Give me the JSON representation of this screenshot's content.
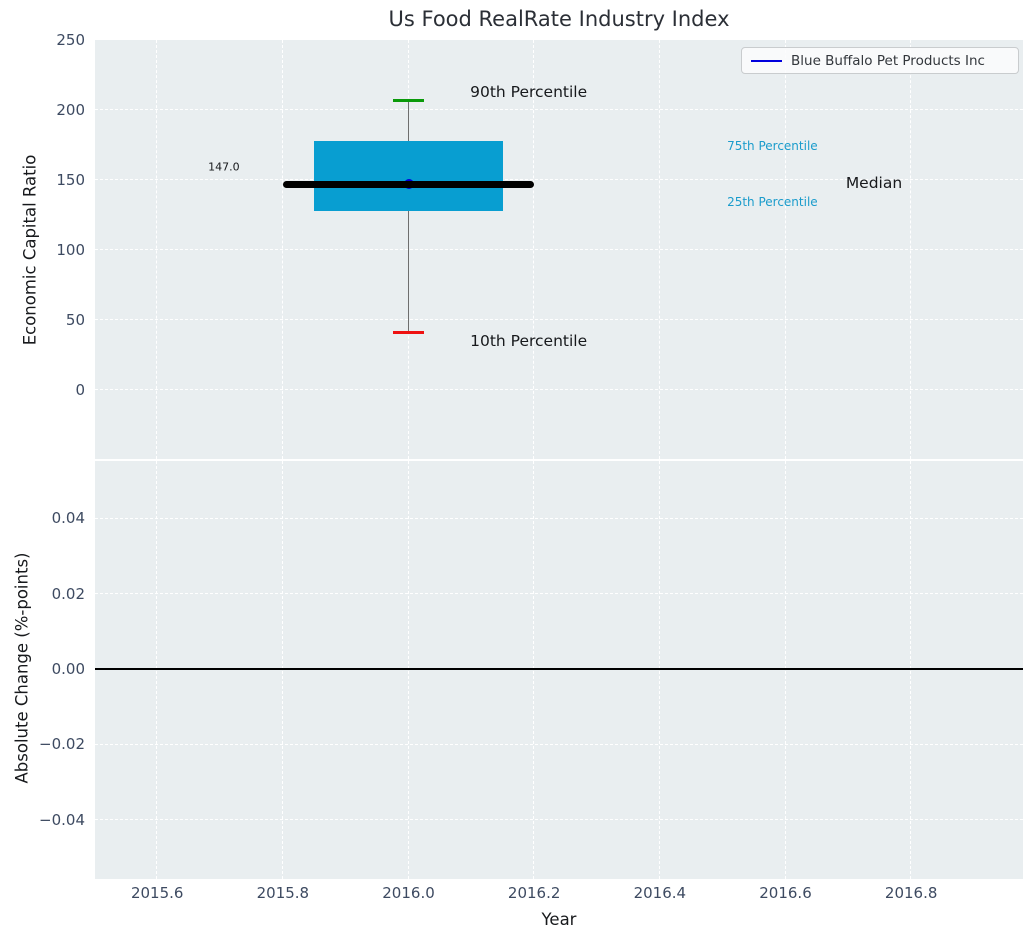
{
  "title": "Us Food RealRate Industry Index",
  "legend": {
    "label": "Blue Buffalo Pet Products Inc",
    "line_color": "#0000dd"
  },
  "colors": {
    "figure_background": "#ffffff",
    "panel_background": "#e9eef0",
    "grid": "#ffffff",
    "tick_label": "#3d4a61",
    "box_fill": "#089ed1",
    "median_line": "#000000",
    "whisker_line": "#6e6e6e",
    "cap_90th": "#0a9a0a",
    "cap_10th": "#ee1111",
    "marker": "#0000dd",
    "percentile_label_cyan": "#1b9ccc",
    "zero_line": "#000000"
  },
  "chart_data": {
    "type": "boxplot",
    "title": "Us Food RealRate Industry Index",
    "xlabel": "Year",
    "xlim": [
      2015.501,
      2016.978
    ],
    "xticks": [
      {
        "v": 2015.6,
        "label": "2015.6"
      },
      {
        "v": 2015.8,
        "label": "2015.8"
      },
      {
        "v": 2016.0,
        "label": "2016.0"
      },
      {
        "v": 2016.2,
        "label": "2016.2"
      },
      {
        "v": 2016.4,
        "label": "2016.4"
      },
      {
        "v": 2016.6,
        "label": "2016.6"
      },
      {
        "v": 2016.8,
        "label": "2016.8"
      }
    ],
    "panels": [
      {
        "id": "top",
        "ylabel": "Economic Capital Ratio",
        "ylim": [
          -49.3,
          250
        ],
        "yticks": [
          {
            "v": 0,
            "label": "0"
          },
          {
            "v": 50,
            "label": "50"
          },
          {
            "v": 100,
            "label": "100"
          },
          {
            "v": 150,
            "label": "150"
          },
          {
            "v": 200,
            "label": "200"
          },
          {
            "v": 250,
            "label": "250"
          }
        ],
        "grid": true
      },
      {
        "id": "bottom",
        "ylabel": "Absolute Change (%-points)",
        "ylim": [
          -0.0557,
          0.0552
        ],
        "yticks": [
          {
            "v": -0.04,
            "label": "−0.04"
          },
          {
            "v": -0.02,
            "label": "−0.02"
          },
          {
            "v": 0.0,
            "label": "0.00"
          },
          {
            "v": 0.02,
            "label": "0.02"
          },
          {
            "v": 0.04,
            "label": "0.04"
          }
        ],
        "grid": true,
        "zero_line": 0.0
      }
    ],
    "box": {
      "series": "Us Food RealRate Industry Index percentiles",
      "x": 2016.0,
      "p10": 41,
      "p25": 128,
      "median": 147.0,
      "p75": 178,
      "p90": 206.6,
      "box_halfwidth": 0.15,
      "median_halfwidth": 0.2,
      "cap_halfwidth": 0.025
    },
    "marker_point": {
      "series": "Blue Buffalo Pet Products Inc",
      "x": 2016.0,
      "y": 147.0
    },
    "annotations": [
      {
        "name": "label-90th-percentile",
        "text": "90th Percentile",
        "x": 2016.098,
        "y": 212.8,
        "panel": "top",
        "color": "#17191c",
        "size": 15.5
      },
      {
        "name": "label-10th-percentile",
        "text": "10th Percentile",
        "x": 2016.098,
        "y": 35.0,
        "panel": "top",
        "color": "#17191c",
        "size": 15.5
      },
      {
        "name": "label-median-value",
        "text": "147.0",
        "x": 2015.681,
        "y": 159.2,
        "panel": "top",
        "color": "#17191c",
        "size": 11
      },
      {
        "name": "label-75th-percentile",
        "text": "75th Percentile",
        "x": 2016.507,
        "y": 174.3,
        "panel": "top",
        "color": "#1b9ccc",
        "size": 12
      },
      {
        "name": "label-25th-percentile",
        "text": "25th Percentile",
        "x": 2016.507,
        "y": 134.0,
        "panel": "top",
        "color": "#1b9ccc",
        "size": 12
      },
      {
        "name": "label-median",
        "text": "Median",
        "x": 2016.696,
        "y": 147.9,
        "panel": "top",
        "color": "#17191c",
        "size": 15.5
      }
    ]
  }
}
